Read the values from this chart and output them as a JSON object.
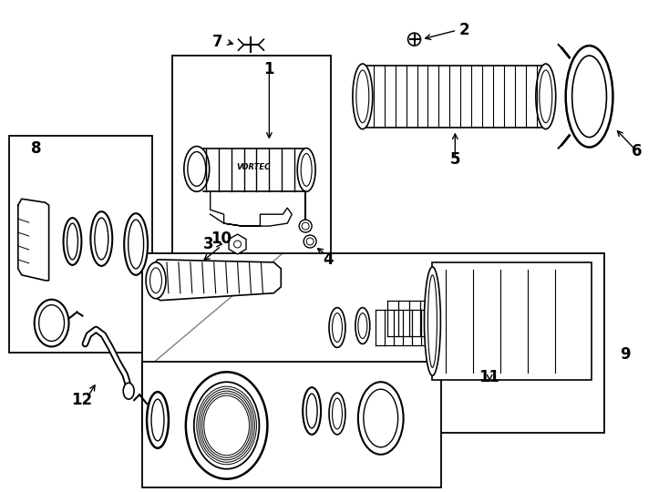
{
  "background_color": "#ffffff",
  "line_color": "#000000",
  "fig_width": 7.34,
  "fig_height": 5.4,
  "dpi": 100
}
